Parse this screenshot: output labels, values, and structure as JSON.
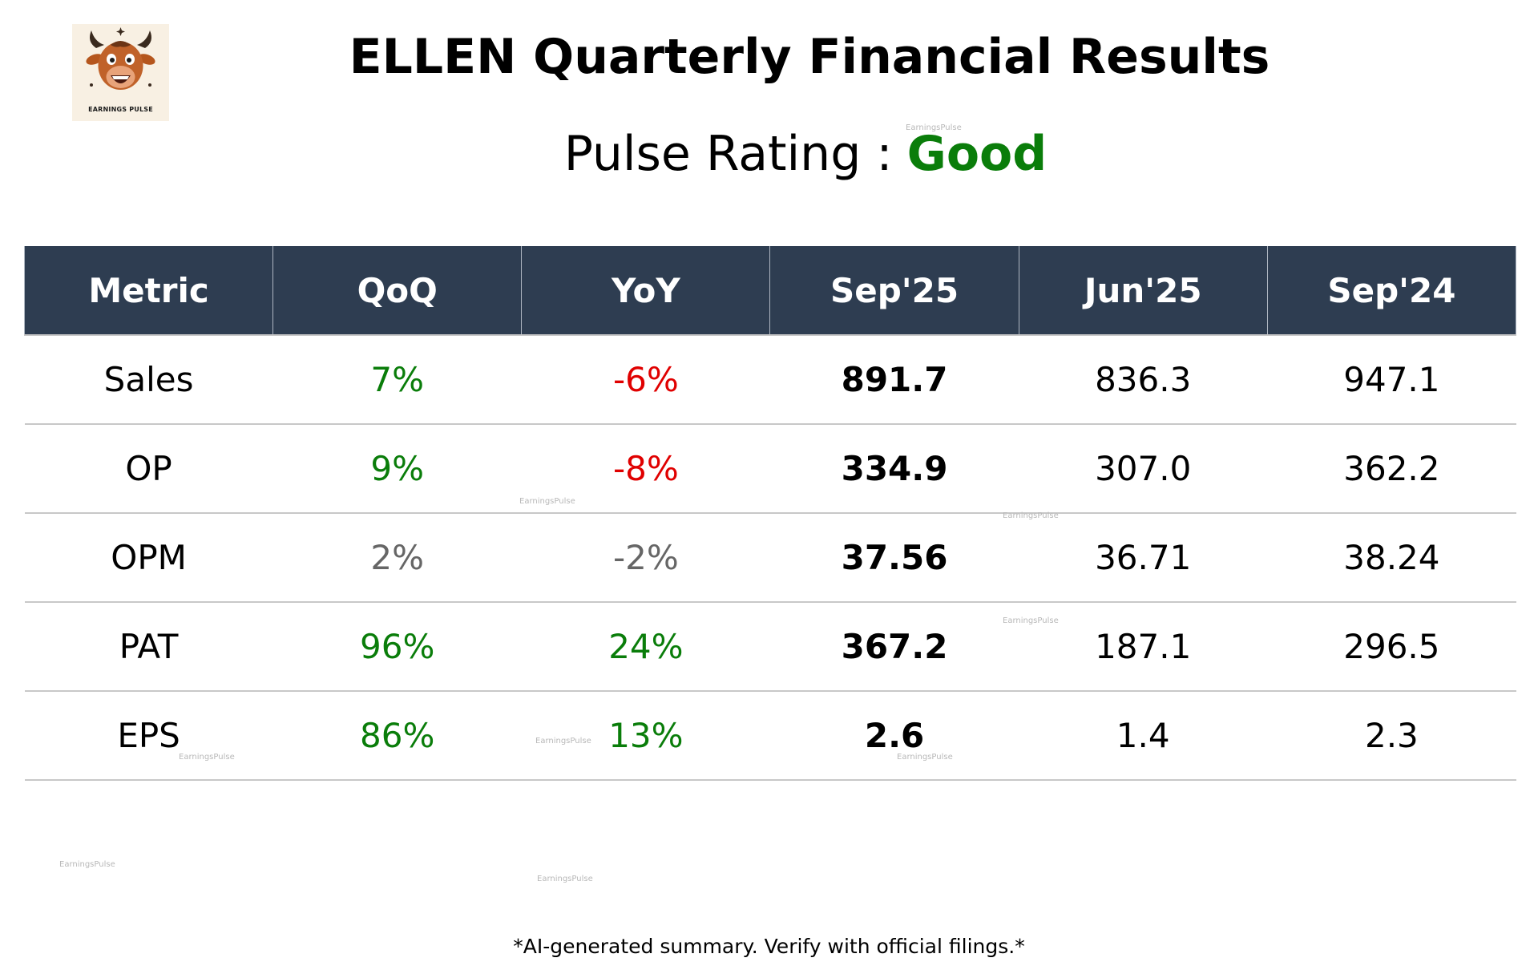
{
  "header": {
    "logo_text": "EARNINGS PULSE",
    "title": "ELLEN Quarterly Financial Results",
    "rating_label": "Pulse Rating :",
    "rating_value": "Good"
  },
  "colors": {
    "header_bg": "#2e3d51",
    "positive": "#0a7d0a",
    "negative": "#e00000",
    "neutral": "#666666"
  },
  "table": {
    "columns": [
      "Metric",
      "QoQ",
      "YoY",
      "Sep'25",
      "Jun'25",
      "Sep'24"
    ],
    "rows": [
      {
        "metric": "Sales",
        "qoq": "7%",
        "qoq_trend": "up",
        "yoy": "-6%",
        "yoy_trend": "down",
        "current": "891.7",
        "prev_q": "836.3",
        "prev_y": "947.1"
      },
      {
        "metric": "OP",
        "qoq": "9%",
        "qoq_trend": "up",
        "yoy": "-8%",
        "yoy_trend": "down",
        "current": "334.9",
        "prev_q": "307.0",
        "prev_y": "362.2"
      },
      {
        "metric": "OPM",
        "qoq": "2%",
        "qoq_trend": "flat",
        "yoy": "-2%",
        "yoy_trend": "flat",
        "current": "37.56",
        "prev_q": "36.71",
        "prev_y": "38.24"
      },
      {
        "metric": "PAT",
        "qoq": "96%",
        "qoq_trend": "up",
        "yoy": "24%",
        "yoy_trend": "up",
        "current": "367.2",
        "prev_q": "187.1",
        "prev_y": "296.5"
      },
      {
        "metric": "EPS",
        "qoq": "86%",
        "qoq_trend": "up",
        "yoy": "13%",
        "yoy_trend": "up",
        "current": "2.6",
        "prev_q": "1.4",
        "prev_y": "2.3"
      }
    ]
  },
  "watermark_text": "EarningsPulse",
  "footnote": "*AI-generated summary. Verify with official filings.*"
}
